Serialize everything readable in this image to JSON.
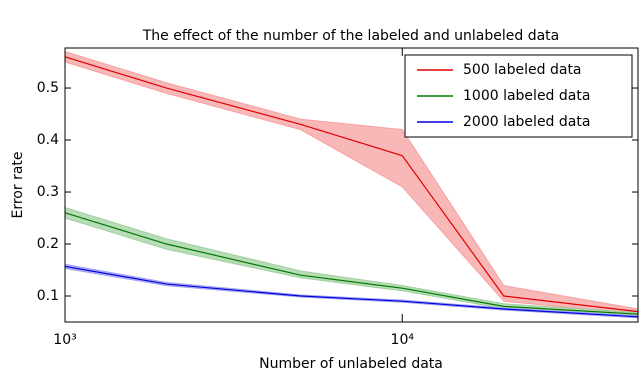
{
  "chart_data": {
    "type": "line",
    "title": "The effect of the number of the labeled and unlabeled data",
    "x_label": "Number of unlabeled data",
    "y_label": "Error rate",
    "x": [
      1000,
      2000,
      5000,
      10000,
      20000,
      50000
    ],
    "xscale": "log",
    "xlim": [
      1000,
      50000
    ],
    "xticks": [
      {
        "value": 1000,
        "label": "10³"
      },
      {
        "value": 10000,
        "label": "10⁴"
      }
    ],
    "ylim": [
      0.05,
      0.577
    ],
    "yticks": [
      0.1,
      0.2,
      0.3,
      0.4,
      0.5
    ],
    "legend": "upper right",
    "series": [
      {
        "name": "500 labeled data",
        "color": "#e00000",
        "band_color": "#f7a0a0",
        "values": [
          0.56,
          0.5,
          0.43,
          0.37,
          0.1,
          0.07
        ],
        "lower": [
          0.55,
          0.49,
          0.42,
          0.31,
          0.09,
          0.065
        ],
        "upper": [
          0.57,
          0.51,
          0.44,
          0.42,
          0.12,
          0.075
        ]
      },
      {
        "name": "1000 labeled data",
        "color": "#007a00",
        "band_color": "#a0d0a0",
        "values": [
          0.26,
          0.2,
          0.14,
          0.115,
          0.08,
          0.065
        ],
        "lower": [
          0.25,
          0.19,
          0.135,
          0.11,
          0.076,
          0.062
        ],
        "upper": [
          0.27,
          0.21,
          0.148,
          0.12,
          0.085,
          0.068
        ]
      },
      {
        "name": "2000 labeled data",
        "color": "#0000e0",
        "band_color": "#a0a0f0",
        "values": [
          0.157,
          0.123,
          0.1,
          0.09,
          0.075,
          0.06
        ],
        "lower": [
          0.153,
          0.12,
          0.098,
          0.088,
          0.073,
          0.058
        ],
        "upper": [
          0.161,
          0.126,
          0.102,
          0.092,
          0.077,
          0.062
        ]
      }
    ]
  }
}
